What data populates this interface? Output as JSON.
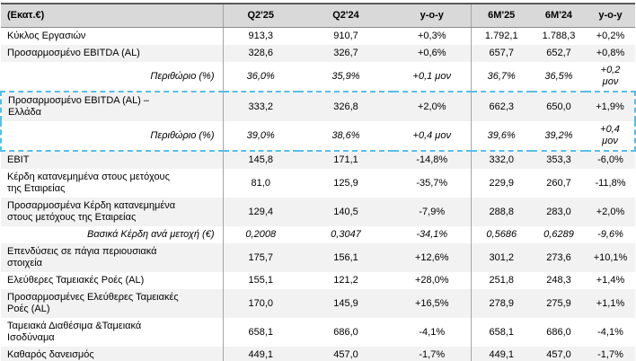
{
  "table": {
    "unit_label": "(Εκατ.€)",
    "columns": [
      "Q2'25",
      "Q2'24",
      "y-o-y",
      "6M'25",
      "6M'24",
      "y-o-y"
    ],
    "styles": {
      "header_bg": "#D9D9D9",
      "alt_row_bg": "#F2F2F2",
      "rule_color": "#595959",
      "divider_color": "#A6A6A6",
      "highlight_dashed_border": "#56BEE8"
    },
    "rows": [
      {
        "label": "Κύκλος Εργασιών",
        "values": [
          "913,3",
          "910,7",
          "+0,3%",
          "1.792,1",
          "1.788,3",
          "+0,2%"
        ],
        "italic": false,
        "shaded": false,
        "highlight": false
      },
      {
        "label": "Προσαρμοσμένο EBITDA (AL)",
        "values": [
          "328,6",
          "326,7",
          "+0,6%",
          "657,7",
          "652,7",
          "+0,8%"
        ],
        "italic": false,
        "shaded": true,
        "highlight": false
      },
      {
        "label": "Περιθώριο (%)",
        "values": [
          "36,0%",
          "35,9%",
          "+0,1 μον",
          "36,7%",
          "36,5%",
          "+0,2\nμον"
        ],
        "italic": true,
        "shaded": false,
        "highlight": false
      },
      {
        "label": "Προσαρμοσμένο EBITDA (AL) –\nΕλλάδα",
        "values": [
          "333,2",
          "326,8",
          "+2,0%",
          "662,3",
          "650,0",
          "+1,9%"
        ],
        "italic": false,
        "shaded": true,
        "highlight": true,
        "highlight_edge": "top"
      },
      {
        "label": "Περιθώριο (%)",
        "values": [
          "39,0%",
          "38,6%",
          "+0,4 μον",
          "39,6%",
          "39,2%",
          "+0,4\nμον"
        ],
        "italic": true,
        "shaded": false,
        "highlight": true,
        "highlight_edge": "bottom"
      },
      {
        "label": "EBIT",
        "values": [
          "145,8",
          "171,1",
          "-14,8%",
          "332,0",
          "353,3",
          "-6,0%"
        ],
        "italic": false,
        "shaded": true,
        "highlight": false
      },
      {
        "label": "Κέρδη κατανεμημένα στους μετόχους\nτης Εταιρείας",
        "values": [
          "81,0",
          "125,9",
          "-35,7%",
          "229,9",
          "260,7",
          "-11,8%"
        ],
        "italic": false,
        "shaded": false,
        "highlight": false
      },
      {
        "label": "Προσαρμοσμένα Κέρδη κατανεμημένα\nστους μετόχους της Εταιρείας",
        "values": [
          "129,4",
          "140,5",
          "-7,9%",
          "288,8",
          "283,0",
          "+2,0%"
        ],
        "italic": false,
        "shaded": true,
        "highlight": false
      },
      {
        "label": "Βασικά Κέρδη ανά μετοχή (€)",
        "values": [
          "0,2008",
          "0,3047",
          "-34,1%",
          "0,5686",
          "0,6289",
          "-9,6%"
        ],
        "italic": true,
        "shaded": false,
        "highlight": false
      },
      {
        "label": "Επενδύσεις σε πάγια περιουσιακά\nστοιχεία",
        "values": [
          "175,7",
          "156,1",
          "+12,6%",
          "301,2",
          "273,6",
          "+10,1%"
        ],
        "italic": false,
        "shaded": true,
        "highlight": false
      },
      {
        "label": "Ελεύθερες Ταμειακές Ροές (AL)",
        "values": [
          "155,1",
          "121,2",
          "+28,0%",
          "251,8",
          "248,3",
          "+1,4%"
        ],
        "italic": false,
        "shaded": false,
        "highlight": false
      },
      {
        "label": "Προσαρμοσμένες Ελεύθερες Ταμειακές\nΡοές (AL)",
        "values": [
          "170,0",
          "145,9",
          "+16,5%",
          "278,9",
          "275,9",
          "+1,1%"
        ],
        "italic": false,
        "shaded": true,
        "highlight": false
      },
      {
        "label": "Ταμειακά Διαθέσιμα &Ταμειακά\nΙσοδύναμα",
        "values": [
          "658,1",
          "686,0",
          "-4,1%",
          "658,1",
          "686,0",
          "-4,1%"
        ],
        "italic": false,
        "shaded": false,
        "highlight": false
      },
      {
        "label": "Καθαρός δανεισμός",
        "values": [
          "449,1",
          "457,0",
          "-1,7%",
          "449,1",
          "457,0",
          "-1,7%"
        ],
        "italic": false,
        "shaded": true,
        "highlight": false
      }
    ]
  }
}
